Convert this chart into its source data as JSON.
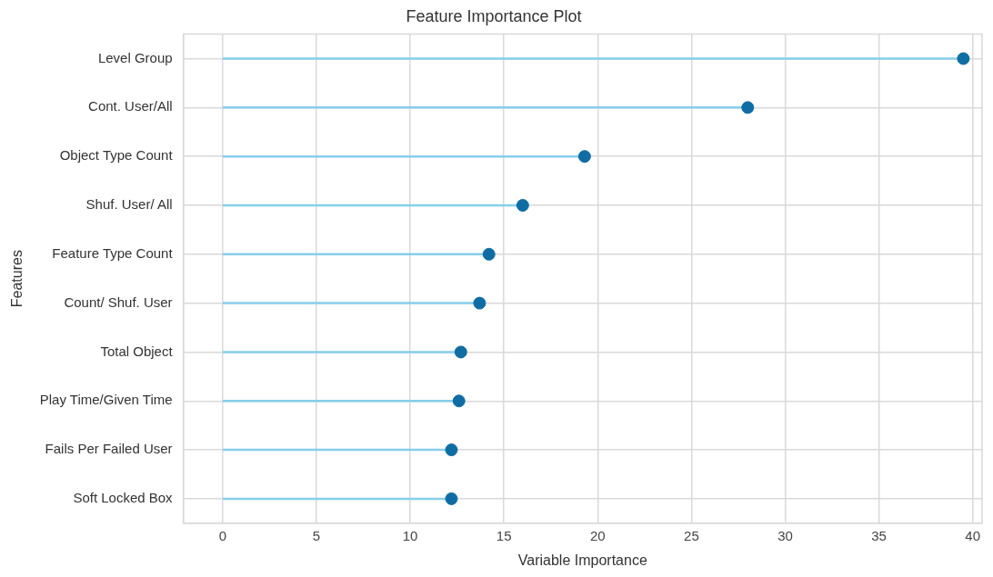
{
  "chart_data": {
    "type": "lollipop",
    "orientation": "horizontal",
    "title": "Feature Importance Plot",
    "xlabel": "Variable Importance",
    "ylabel": "Features",
    "categories": [
      "Level Group",
      "Cont. User/All",
      "Object Type Count",
      "Shuf. User/ All",
      "Feature Type Count",
      "Count/ Shuf. User",
      "Total Object",
      "Play Time/Given Time",
      "Fails Per Failed User",
      "Soft Locked Box"
    ],
    "series": [
      {
        "color": "#0f6da3",
        "values": [
          39.5,
          28.0,
          19.3,
          16.0,
          14.2,
          13.7,
          12.7,
          12.6,
          12.2,
          12.2
        ]
      }
    ],
    "xlim": [
      -2.1,
      40.5
    ],
    "xticks": [
      0,
      5,
      10,
      15,
      20,
      25,
      30,
      35,
      40
    ],
    "grid": true,
    "legend": false,
    "marker": "circle"
  }
}
